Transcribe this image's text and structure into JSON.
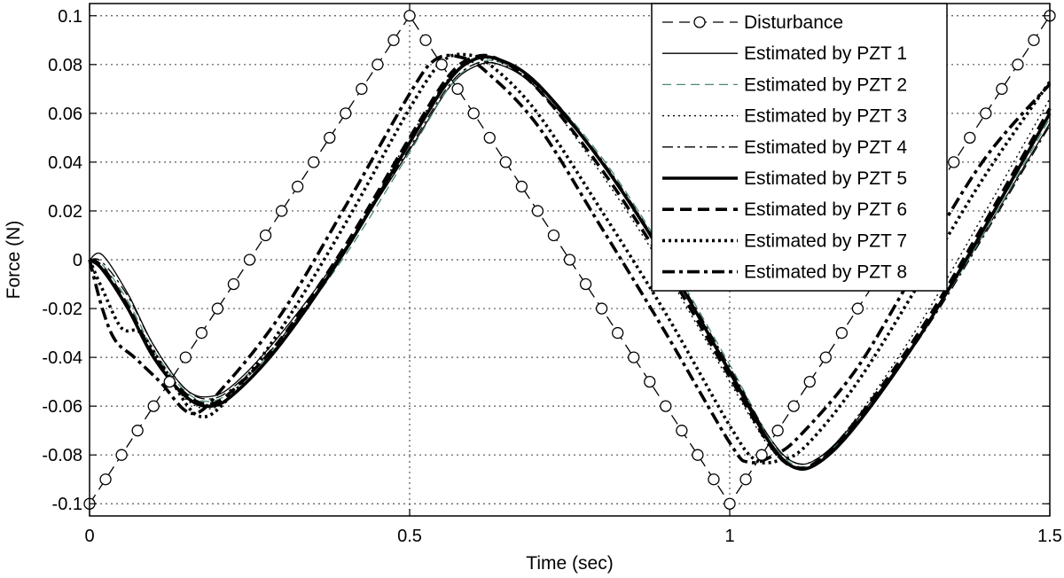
{
  "chart_data": {
    "type": "line",
    "title": "",
    "xlabel": "Time (sec)",
    "ylabel": "Force (N)",
    "xlim": [
      0,
      1.5
    ],
    "ylim": [
      -0.105,
      0.105
    ],
    "xticks": [
      0,
      0.5,
      1,
      1.5
    ],
    "xtick_labels": [
      "0",
      "0.5",
      "1",
      "1.5"
    ],
    "yticks": [
      -0.1,
      -0.08,
      -0.06,
      -0.04,
      -0.02,
      0,
      0.02,
      0.04,
      0.06,
      0.08,
      0.1
    ],
    "ytick_labels": [
      "-0.1",
      "-0.08",
      "-0.06",
      "-0.04",
      "-0.02",
      "0",
      "0.02",
      "0.04",
      "0.06",
      "0.08",
      "0.1"
    ],
    "grid": true,
    "legend_position": "top-right",
    "series": [
      {
        "name": "Disturbance",
        "style": "dash-circle",
        "color": "#000000",
        "x": [
          0,
          0.5,
          1,
          1.5
        ],
        "y": [
          -0.1,
          0.1,
          -0.1,
          0.1
        ],
        "marker_step": 0.025
      },
      {
        "name": "Estimated by PZT 1",
        "style": "solid-thin",
        "color": "#000000",
        "x": [
          0,
          0.02,
          0.06,
          0.1,
          0.15,
          0.19,
          0.23,
          0.3,
          0.4,
          0.5,
          0.56,
          0.6,
          0.64,
          0.7,
          0.8,
          0.9,
          1.0,
          1.06,
          1.1,
          1.14,
          1.2,
          1.3,
          1.4,
          1.5
        ],
        "y": [
          0,
          0.002,
          -0.014,
          -0.035,
          -0.053,
          -0.056,
          -0.05,
          -0.03,
          0.005,
          0.045,
          0.07,
          0.079,
          0.08,
          0.07,
          0.04,
          0.0,
          -0.045,
          -0.072,
          -0.083,
          -0.081,
          -0.065,
          -0.03,
          0.012,
          0.056
        ]
      },
      {
        "name": "Estimated by PZT 2",
        "style": "dash",
        "color": "#4a8a6e",
        "x": [
          0,
          0.02,
          0.06,
          0.1,
          0.15,
          0.19,
          0.23,
          0.3,
          0.4,
          0.5,
          0.56,
          0.6,
          0.64,
          0.7,
          0.8,
          0.9,
          1.0,
          1.06,
          1.1,
          1.14,
          1.2,
          1.3,
          1.4,
          1.5
        ],
        "y": [
          0,
          -0.002,
          -0.017,
          -0.037,
          -0.054,
          -0.058,
          -0.052,
          -0.033,
          0.002,
          0.044,
          0.07,
          0.08,
          0.081,
          0.072,
          0.042,
          0.002,
          -0.043,
          -0.072,
          -0.084,
          -0.082,
          -0.066,
          -0.03,
          0.012,
          0.058
        ]
      },
      {
        "name": "Estimated by PZT 3",
        "style": "dot-thin",
        "color": "#000000",
        "x": [
          0,
          0.02,
          0.06,
          0.1,
          0.15,
          0.19,
          0.23,
          0.3,
          0.4,
          0.5,
          0.56,
          0.6,
          0.64,
          0.7,
          0.8,
          0.9,
          1.0,
          1.06,
          1.1,
          1.14,
          1.2,
          1.3,
          1.4,
          1.5
        ],
        "y": [
          0,
          -0.004,
          -0.02,
          -0.04,
          -0.057,
          -0.061,
          -0.054,
          -0.033,
          0.005,
          0.05,
          0.074,
          0.082,
          0.081,
          0.07,
          0.035,
          -0.005,
          -0.05,
          -0.076,
          -0.085,
          -0.082,
          -0.064,
          -0.025,
          0.02,
          0.066
        ]
      },
      {
        "name": "Estimated by PZT 4",
        "style": "dashdot-thin",
        "color": "#000000",
        "x": [
          0,
          0.02,
          0.06,
          0.1,
          0.15,
          0.19,
          0.23,
          0.3,
          0.4,
          0.5,
          0.56,
          0.6,
          0.64,
          0.7,
          0.8,
          0.9,
          1.0,
          1.06,
          1.1,
          1.14,
          1.2,
          1.3,
          1.4,
          1.5
        ],
        "y": [
          0,
          -0.001,
          -0.015,
          -0.035,
          -0.053,
          -0.057,
          -0.051,
          -0.032,
          0.004,
          0.046,
          0.071,
          0.08,
          0.08,
          0.071,
          0.041,
          0.001,
          -0.044,
          -0.072,
          -0.083,
          -0.081,
          -0.066,
          -0.031,
          0.011,
          0.055
        ]
      },
      {
        "name": "Estimated by PZT 5",
        "style": "solid-thick",
        "color": "#000000",
        "x": [
          0,
          0.02,
          0.06,
          0.1,
          0.15,
          0.19,
          0.23,
          0.3,
          0.4,
          0.5,
          0.56,
          0.6,
          0.64,
          0.7,
          0.8,
          0.9,
          1.0,
          1.06,
          1.1,
          1.14,
          1.2,
          1.3,
          1.4,
          1.5
        ],
        "y": [
          0,
          -0.004,
          -0.02,
          -0.04,
          -0.056,
          -0.06,
          -0.054,
          -0.034,
          0.004,
          0.048,
          0.073,
          0.082,
          0.082,
          0.072,
          0.04,
          0.0,
          -0.046,
          -0.074,
          -0.085,
          -0.083,
          -0.067,
          -0.03,
          0.014,
          0.06
        ]
      },
      {
        "name": "Estimated by PZT 6",
        "style": "dash-thick",
        "color": "#000000",
        "x": [
          0,
          0.02,
          0.06,
          0.1,
          0.15,
          0.19,
          0.23,
          0.3,
          0.4,
          0.5,
          0.56,
          0.6,
          0.64,
          0.7,
          0.8,
          0.9,
          1.0,
          1.06,
          1.1,
          1.14,
          1.2,
          1.3,
          1.4,
          1.5
        ],
        "y": [
          0,
          -0.003,
          -0.019,
          -0.039,
          -0.055,
          -0.059,
          -0.052,
          -0.032,
          0.006,
          0.05,
          0.075,
          0.083,
          0.082,
          0.07,
          0.037,
          -0.003,
          -0.048,
          -0.075,
          -0.085,
          -0.082,
          -0.065,
          -0.028,
          0.016,
          0.062
        ]
      },
      {
        "name": "Estimated by PZT 7",
        "style": "dot-thick",
        "color": "#000000",
        "x": [
          0,
          0.02,
          0.05,
          0.08,
          0.12,
          0.17,
          0.22,
          0.3,
          0.4,
          0.5,
          0.55,
          0.59,
          0.63,
          0.7,
          0.8,
          0.9,
          1.0,
          1.04,
          1.08,
          1.12,
          1.2,
          1.3,
          1.4,
          1.5
        ],
        "y": [
          0,
          -0.012,
          -0.028,
          -0.03,
          -0.046,
          -0.064,
          -0.056,
          -0.028,
          0.015,
          0.062,
          0.081,
          0.084,
          0.079,
          0.06,
          0.02,
          -0.022,
          -0.068,
          -0.082,
          -0.082,
          -0.076,
          -0.05,
          -0.008,
          0.035,
          0.073
        ]
      },
      {
        "name": "Estimated by PZT 8",
        "style": "dashdot-thick",
        "color": "#000000",
        "x": [
          0,
          0.02,
          0.04,
          0.07,
          0.11,
          0.16,
          0.21,
          0.3,
          0.4,
          0.5,
          0.54,
          0.58,
          0.62,
          0.7,
          0.8,
          0.9,
          1.0,
          1.03,
          1.07,
          1.11,
          1.2,
          1.3,
          1.4,
          1.5
        ],
        "y": [
          0,
          -0.02,
          -0.033,
          -0.04,
          -0.05,
          -0.063,
          -0.052,
          -0.022,
          0.022,
          0.068,
          0.082,
          0.083,
          0.077,
          0.055,
          0.013,
          -0.03,
          -0.075,
          -0.083,
          -0.08,
          -0.072,
          -0.044,
          0.0,
          0.042,
          0.072
        ]
      }
    ]
  }
}
